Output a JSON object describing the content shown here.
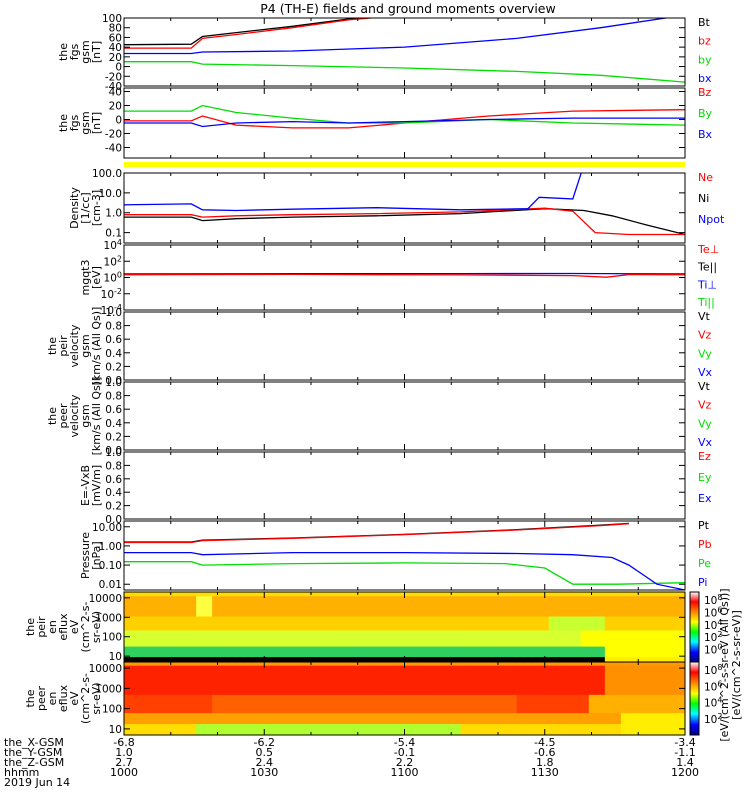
{
  "title": "P4 (TH-E) fields and ground moments overview",
  "colors": {
    "black": "#000000",
    "red": "#ff0000",
    "green": "#00dd00",
    "blue": "#0000ff",
    "yellow": "#ffff00"
  },
  "chart_data": [
    {
      "type": "line",
      "ylabel": [
        "the",
        "fgs",
        "gsm",
        "[nT]"
      ],
      "ylim": [
        -40,
        100
      ],
      "yticks": [
        100,
        80,
        60,
        40,
        20,
        0,
        -20,
        -40
      ],
      "legend": [
        {
          "label": "Bt",
          "color": "black"
        },
        {
          "label": "bz",
          "color": "red"
        },
        {
          "label": "by",
          "color": "green"
        },
        {
          "label": "bx",
          "color": "blue"
        }
      ],
      "series": [
        {
          "name": "Bt",
          "color": "black",
          "x": [
            0,
            0.12,
            0.14,
            0.2,
            0.3,
            0.4,
            0.5
          ],
          "y": [
            45,
            46,
            62,
            70,
            83,
            98,
            108
          ]
        },
        {
          "name": "bz",
          "color": "red",
          "x": [
            0,
            0.12,
            0.14,
            0.2,
            0.3,
            0.4,
            0.5
          ],
          "y": [
            38,
            38,
            58,
            66,
            80,
            96,
            106
          ]
        },
        {
          "name": "by",
          "color": "green",
          "x": [
            0,
            0.12,
            0.14,
            0.3,
            0.5,
            0.7,
            0.85,
            1.0
          ],
          "y": [
            10,
            10,
            5,
            2,
            -3,
            -10,
            -18,
            -32
          ]
        },
        {
          "name": "bx",
          "color": "blue",
          "x": [
            0,
            0.12,
            0.14,
            0.3,
            0.5,
            0.7,
            0.85,
            1.0
          ],
          "y": [
            27,
            27,
            30,
            32,
            40,
            58,
            80,
            106
          ]
        }
      ]
    },
    {
      "type": "line",
      "ylabel": [
        "the",
        "fgs",
        "gsm",
        "[nT]"
      ],
      "ylim": [
        -55,
        45
      ],
      "yticks": [
        40,
        20,
        0,
        -20,
        -40
      ],
      "legend": [
        {
          "label": "Bz",
          "color": "red"
        },
        {
          "label": "By",
          "color": "green"
        },
        {
          "label": "Bx",
          "color": "blue"
        }
      ],
      "series": [
        {
          "name": "Bz",
          "color": "red",
          "x": [
            0,
            0.12,
            0.14,
            0.2,
            0.3,
            0.4,
            0.5,
            0.65,
            0.8,
            1.0
          ],
          "y": [
            -2,
            -2,
            5,
            -8,
            -12,
            -12,
            -5,
            5,
            12,
            14
          ]
        },
        {
          "name": "By",
          "color": "green",
          "x": [
            0,
            0.12,
            0.14,
            0.2,
            0.3,
            0.4,
            0.5,
            0.65,
            0.8,
            1.0
          ],
          "y": [
            12,
            12,
            20,
            10,
            2,
            -5,
            -5,
            0,
            -5,
            -8
          ]
        },
        {
          "name": "Bx",
          "color": "blue",
          "x": [
            0,
            0.12,
            0.14,
            0.2,
            0.3,
            0.4,
            0.5,
            0.65,
            0.8,
            1.0
          ],
          "y": [
            -5,
            -5,
            -10,
            -5,
            -3,
            -5,
            -3,
            0,
            2,
            2
          ]
        }
      ]
    },
    {
      "type": "line",
      "yscale": "log",
      "ylabel": [
        "Density",
        "[1/cc]",
        "[cm-3]"
      ],
      "ylim": [
        0.03,
        100
      ],
      "yticks": [
        "100.0",
        "10.0",
        "1.0",
        "0.1"
      ],
      "legend": [
        {
          "label": "Ne",
          "color": "red"
        },
        {
          "label": "Ni",
          "color": "black"
        },
        {
          "label": "Npot",
          "color": "blue"
        }
      ],
      "series": [
        {
          "name": "Ni",
          "color": "black",
          "x": [
            0,
            0.12,
            0.14,
            0.2,
            0.3,
            0.45,
            0.6,
            0.75,
            0.82,
            0.87,
            0.93,
            1.0
          ],
          "y": [
            0.6,
            0.6,
            0.4,
            0.5,
            0.6,
            0.7,
            0.9,
            1.6,
            1.3,
            0.7,
            0.25,
            0.08
          ]
        },
        {
          "name": "Ne",
          "color": "red",
          "x": [
            0,
            0.12,
            0.14,
            0.2,
            0.3,
            0.45,
            0.6,
            0.75,
            0.8,
            0.84,
            0.9,
            1.0
          ],
          "y": [
            0.8,
            0.8,
            0.6,
            0.7,
            0.8,
            0.9,
            1.1,
            1.7,
            1.2,
            0.1,
            0.08,
            0.08
          ]
        },
        {
          "name": "Npot",
          "color": "blue",
          "x": [
            0,
            0.12,
            0.14,
            0.2,
            0.3,
            0.45,
            0.6,
            0.72,
            0.74,
            0.8,
            0.815
          ],
          "y": [
            2.5,
            2.8,
            1.4,
            1.3,
            1.5,
            1.8,
            1.4,
            1.6,
            6,
            5,
            100
          ]
        }
      ]
    },
    {
      "type": "line",
      "yscale": "log",
      "ylabel": [
        "mgqt3",
        "[eV]"
      ],
      "ylim": [
        "10^-4",
        "10^4"
      ],
      "yticks": [
        "10^4",
        "10^2",
        "10^0",
        "10^-2",
        "10^-4"
      ],
      "legend": [
        {
          "label": "Te⊥",
          "color": "red"
        },
        {
          "label": "Te||",
          "color": "black"
        },
        {
          "label": "Ti⊥",
          "color": "blue"
        },
        {
          "label": "Ti||",
          "color": "green"
        }
      ],
      "series": [
        {
          "name": "Ti",
          "color": "blue",
          "x": [
            0,
            0.3,
            0.6,
            0.8,
            1.0
          ],
          "y": [
            2.8,
            2.9,
            3.0,
            3.1,
            2.8
          ]
        },
        {
          "name": "Te",
          "color": "red",
          "x": [
            0,
            0.3,
            0.6,
            0.8,
            0.86,
            0.9,
            1.0
          ],
          "y": [
            2.2,
            2.4,
            2.1,
            1.7,
            1.1,
            2.3,
            2.2
          ]
        }
      ]
    },
    {
      "type": "line",
      "ylabel": [
        "the",
        "peir",
        "velocity",
        "gsm",
        "[km/s (All Qs)]"
      ],
      "ylim": [
        0,
        1
      ],
      "yticks": [
        "1.0",
        "0.8",
        "0.6",
        "0.4",
        "0.2",
        "0.0"
      ],
      "legend": [
        {
          "label": "Vt",
          "color": "black"
        },
        {
          "label": "Vz",
          "color": "red"
        },
        {
          "label": "Vy",
          "color": "green"
        },
        {
          "label": "Vx",
          "color": "blue"
        }
      ],
      "series": []
    },
    {
      "type": "line",
      "ylabel": [
        "the",
        "peer",
        "velocity",
        "gsm",
        "[km/s (All Qs)]"
      ],
      "ylim": [
        0,
        1
      ],
      "yticks": [
        "1.0",
        "0.8",
        "0.6",
        "0.4",
        "0.2",
        "0.0"
      ],
      "legend": [
        {
          "label": "Vt",
          "color": "black"
        },
        {
          "label": "Vz",
          "color": "red"
        },
        {
          "label": "Vy",
          "color": "green"
        },
        {
          "label": "Vx",
          "color": "blue"
        }
      ],
      "series": []
    },
    {
      "type": "line",
      "ylabel": [
        "E=-VxB",
        "[mV/m]"
      ],
      "ylim": [
        0,
        1
      ],
      "yticks": [
        "1.0",
        "0.8",
        "0.6",
        "0.4",
        "0.2",
        "0.0"
      ],
      "legend": [
        {
          "label": "Ez",
          "color": "red"
        },
        {
          "label": "Ey",
          "color": "green"
        },
        {
          "label": "Ex",
          "color": "blue"
        }
      ],
      "series": []
    },
    {
      "type": "line",
      "yscale": "log",
      "ylabel": [
        "Pressure",
        "[nPa]"
      ],
      "ylim": [
        0.005,
        20
      ],
      "yticks": [
        "10.00",
        "1.00",
        "0.10",
        "0.01"
      ],
      "legend": [
        {
          "label": "Pt",
          "color": "black"
        },
        {
          "label": "Pb",
          "color": "red"
        },
        {
          "label": "Pe",
          "color": "green"
        },
        {
          "label": "Pi",
          "color": "blue"
        }
      ],
      "series": [
        {
          "name": "Pt",
          "color": "black",
          "x": [
            0,
            0.12,
            0.14,
            0.3,
            0.5,
            0.7,
            0.85,
            0.9
          ],
          "y": [
            1.6,
            1.6,
            2.0,
            2.6,
            4.0,
            7.0,
            12,
            15
          ]
        },
        {
          "name": "Pb",
          "color": "red",
          "x": [
            0,
            0.12,
            0.14,
            0.3,
            0.5,
            0.7,
            0.85,
            0.9
          ],
          "y": [
            1.5,
            1.5,
            1.9,
            2.5,
            3.9,
            6.8,
            11.5,
            14.5
          ]
        },
        {
          "name": "Pe",
          "color": "green",
          "x": [
            0,
            0.12,
            0.14,
            0.3,
            0.5,
            0.68,
            0.75,
            0.8,
            0.88,
            1.0
          ],
          "y": [
            0.15,
            0.15,
            0.1,
            0.12,
            0.13,
            0.12,
            0.07,
            0.01,
            0.01,
            0.012
          ]
        },
        {
          "name": "Pi",
          "color": "blue",
          "x": [
            0,
            0.12,
            0.14,
            0.3,
            0.5,
            0.7,
            0.8,
            0.87,
            0.9,
            0.95,
            1.0
          ],
          "y": [
            0.45,
            0.45,
            0.35,
            0.45,
            0.45,
            0.4,
            0.35,
            0.25,
            0.1,
            0.01,
            0.005
          ]
        }
      ]
    },
    {
      "type": "heatmap",
      "ylabel": [
        "the",
        "peir",
        "en",
        "eflux",
        "eV",
        "(cm^2-s-",
        "sr-eV)"
      ],
      "yscale": "log",
      "ylim": [
        5,
        20000
      ],
      "yticks": [
        "10000",
        "1000",
        "100",
        "10"
      ]
    },
    {
      "type": "heatmap",
      "ylabel": [
        "the",
        "peer",
        "en",
        "eflux",
        "eV",
        "(cm^2-s-",
        "sr-eV)"
      ],
      "yscale": "log",
      "ylim": [
        5,
        20000
      ],
      "yticks": [
        "10000",
        "1000",
        "100",
        "10"
      ]
    }
  ],
  "colorbar": {
    "label": "[eV/(cm^2-s-sr-eV)]",
    "ion_ticks": [
      "10^8",
      "10^6",
      "10^4",
      "10^2",
      "10^0"
    ],
    "ion_label": "[eV/(cm^2-s-sr-eV (All Qs))]",
    "ele_ticks": [
      "10^8",
      "10^6",
      "10^4",
      "10^2"
    ]
  },
  "time_axis": {
    "row_labels": [
      "the_X-GSM",
      "the_Y-GSM",
      "the_Z-GSM",
      "hhmm",
      "2019 Jun 14"
    ],
    "ticks": [
      {
        "x": "-6.8",
        "y": "1.0",
        "z": "2.7",
        "t": "1000"
      },
      {
        "x": "-6.2",
        "y": "0.5",
        "z": "2.4",
        "t": "1030"
      },
      {
        "x": "-5.4",
        "y": "-0.1",
        "z": "2.2",
        "t": "1100"
      },
      {
        "x": "-4.5",
        "y": "-0.6",
        "z": "1.8",
        "t": "1130"
      },
      {
        "x": "-3.4",
        "y": "-1.1",
        "z": "1.4",
        "t": "1200"
      }
    ]
  }
}
